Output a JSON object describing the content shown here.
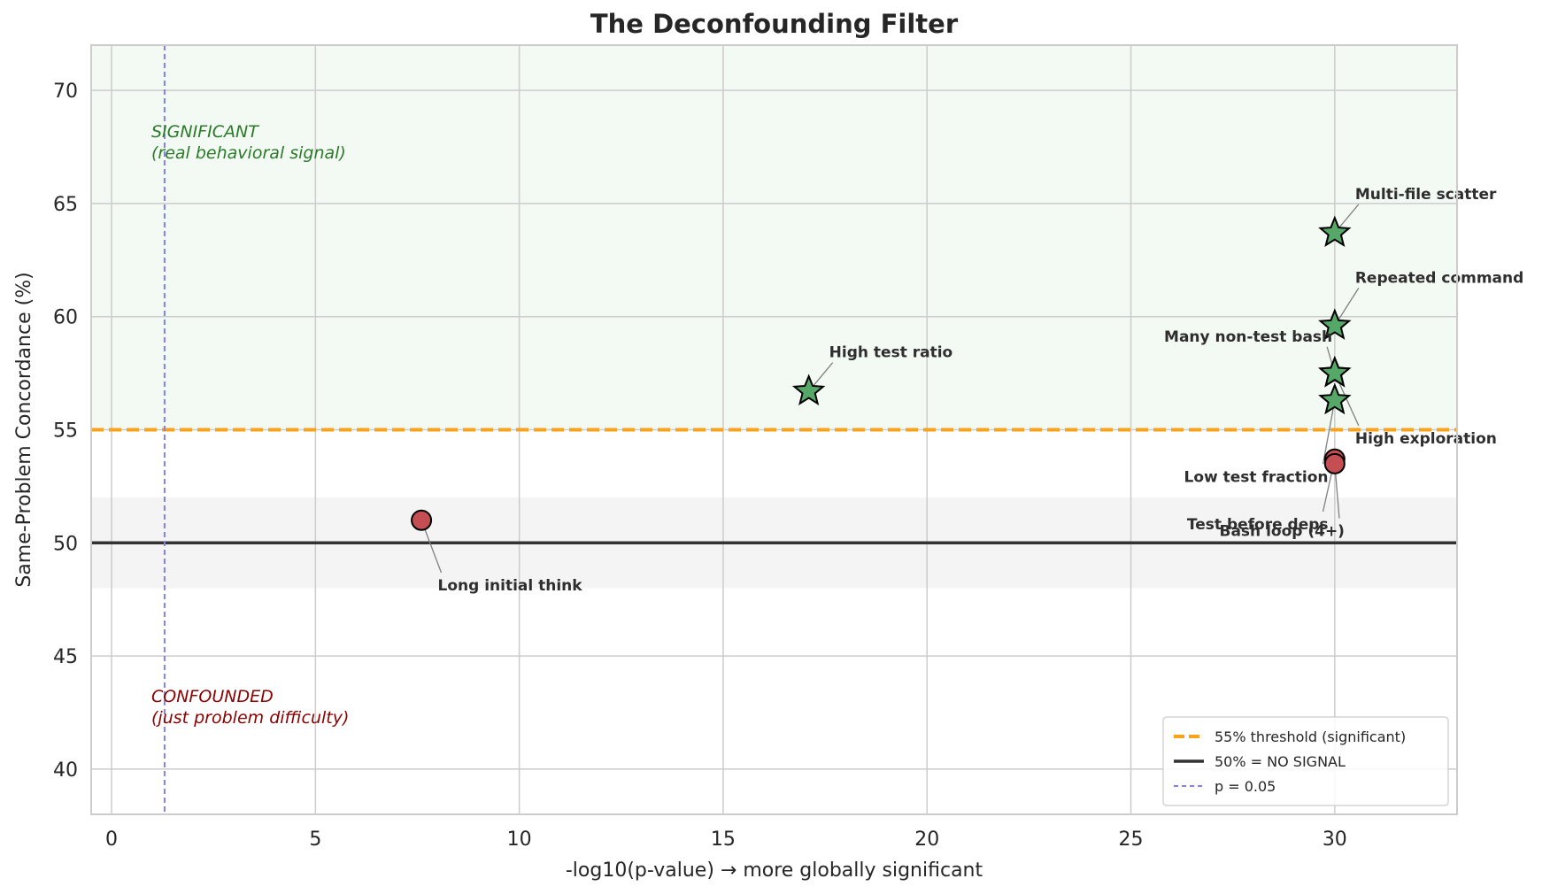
{
  "chart_data": {
    "type": "scatter",
    "title": "The Deconfounding Filter",
    "xlabel": "-log10(p-value)  →  more globally significant",
    "ylabel": "Same-Problem Concordance (%)",
    "xlim": [
      -0.5,
      33
    ],
    "ylim": [
      38,
      72
    ],
    "xticks": [
      0,
      5,
      10,
      15,
      20,
      25,
      30
    ],
    "yticks": [
      40,
      45,
      50,
      55,
      60,
      65,
      70
    ],
    "grid": true,
    "legend_position": "bottom-right",
    "significant_band": [
      55,
      72
    ],
    "noise_band": [
      48,
      52
    ],
    "threshold": 55,
    "no_signal": 50,
    "p_line": 1.3,
    "colors": {
      "significant": "#55a868",
      "confounded": "#c44e52",
      "threshold": "#f8a31b",
      "no_signal": "#333333",
      "p_line": "#8080ee",
      "significant_text": "#2a7a2a",
      "confounded_text": "#8b0000"
    },
    "points": [
      {
        "label": "Multi-file scatter",
        "x": 30,
        "y": 63.7,
        "group": "significant",
        "lx": 30.5,
        "ly": 65.2
      },
      {
        "label": "Repeated command",
        "x": 30,
        "y": 59.6,
        "group": "significant",
        "lx": 30.5,
        "ly": 61.5
      },
      {
        "label": "Many non-test bash",
        "x": 30,
        "y": 57.5,
        "group": "significant",
        "lx": 25.6,
        "ly": 58.9
      },
      {
        "label": "High exploration",
        "x": 30,
        "y": 57.5,
        "group": "significant",
        "lx": 30.5,
        "ly": 54.4
      },
      {
        "label": "Low test fraction",
        "x": 30,
        "y": 56.3,
        "group": "significant",
        "lx": 25.5,
        "ly": 52.7
      },
      {
        "label": "High test ratio",
        "x": 17.1,
        "y": 56.7,
        "group": "significant",
        "lx": 17.6,
        "ly": 58.2
      },
      {
        "label": "Test before deps",
        "x": 30,
        "y": 53.7,
        "group": "confounded",
        "lx": 25.5,
        "ly": 50.6
      },
      {
        "label": "Bash loop (4+)",
        "x": 30,
        "y": 53.5,
        "group": "confounded",
        "lx": 25.9,
        "ly": 50.3
      },
      {
        "label": "Long initial think",
        "x": 7.6,
        "y": 51.0,
        "group": "confounded",
        "lx": 8.0,
        "ly": 47.9
      }
    ],
    "region_labels": {
      "significant": [
        "SIGNIFICANT",
        "(real behavioral signal)"
      ],
      "confounded": [
        "CONFOUNDED",
        "(just problem difficulty)"
      ]
    },
    "legend": [
      "55% threshold (significant)",
      "50% = NO SIGNAL",
      "p = 0.05"
    ]
  }
}
